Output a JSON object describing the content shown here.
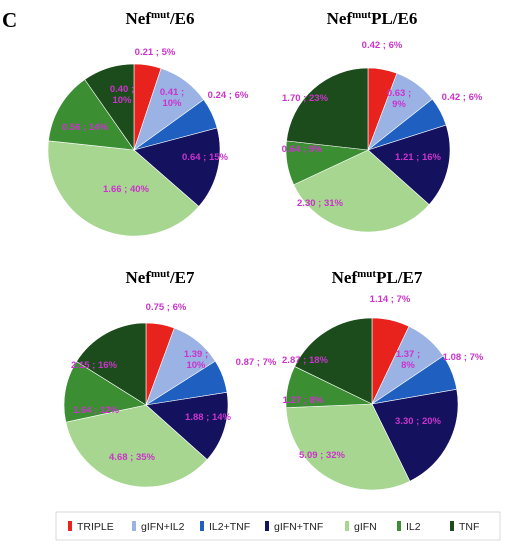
{
  "panel_label": "C",
  "colors": {
    "TRIPLE": "#e8221c",
    "gIFN+IL2": "#9ab2e4",
    "IL2+TNF": "#1f5fc0",
    "gIFN+TNF": "#14125e",
    "gIFN": "#a6d690",
    "IL2": "#3c8e33",
    "TNF": "#1c4c1c"
  },
  "legend": {
    "entries": [
      "TRIPLE",
      "gIFN+IL2",
      "IL2+TNF",
      "gIFN+TNF",
      "gIFN",
      "IL2",
      "TNF"
    ],
    "placement": "bottom"
  },
  "chart_data": [
    {
      "type": "pie",
      "title": {
        "base": "Nef",
        "sup": "mut",
        "rest": "/E6"
      },
      "categories": [
        "TRIPLE",
        "gIFN+IL2",
        "IL2+TNF",
        "gIFN+TNF",
        "gIFN",
        "IL2",
        "TNF"
      ],
      "values": [
        0.21,
        0.41,
        0.24,
        0.64,
        1.66,
        0.56,
        0.4
      ],
      "percents": [
        5,
        10,
        6,
        15,
        40,
        14,
        10
      ],
      "labels": [
        "0.21 ; 5%",
        "0.41 ;\n10%",
        "0.24 ; 6%",
        "0.64 ; 15%",
        "1.66 ; 40%",
        "0.56 ; 14%",
        "0.40 ;\n10%"
      ]
    },
    {
      "type": "pie",
      "title": {
        "base": "Nef",
        "sup": "mut",
        "rest": "PL/E6"
      },
      "categories": [
        "TRIPLE",
        "gIFN+IL2",
        "IL2+TNF",
        "gIFN+TNF",
        "gIFN",
        "IL2",
        "TNF"
      ],
      "values": [
        0.42,
        0.63,
        0.42,
        1.21,
        2.3,
        0.64,
        1.7
      ],
      "percents": [
        6,
        9,
        6,
        16,
        31,
        9,
        23
      ],
      "labels": [
        "0.42 ; 6%",
        "0.63 ;\n9%",
        "0.42 ; 6%",
        "1.21 ; 16%",
        "2.30 ; 31%",
        "0.64 ; 9%",
        "1.70 ; 23%"
      ]
    },
    {
      "type": "pie",
      "title": {
        "base": "Nef",
        "sup": "mut",
        "rest": "/E7"
      },
      "categories": [
        "TRIPLE",
        "gIFN+IL2",
        "IL2+TNF",
        "gIFN+TNF",
        "gIFN",
        "IL2",
        "TNF"
      ],
      "values": [
        0.75,
        1.39,
        0.87,
        1.88,
        4.68,
        1.64,
        2.15
      ],
      "percents": [
        6,
        10,
        7,
        14,
        35,
        12,
        16
      ],
      "labels": [
        "0.75 ; 6%",
        "1.39 ;\n10%",
        "0.87 ; 7%",
        "1.88 ; 14%",
        "4.68 ; 35%",
        "1.64 ; 12%",
        "2.15 ; 16%"
      ]
    },
    {
      "type": "pie",
      "title": {
        "base": "Nef",
        "sup": "mut",
        "rest": "PL/E7"
      },
      "categories": [
        "TRIPLE",
        "gIFN+IL2",
        "IL2+TNF",
        "gIFN+TNF",
        "gIFN",
        "IL2",
        "TNF"
      ],
      "values": [
        1.14,
        1.37,
        1.08,
        3.3,
        5.09,
        1.27,
        2.87
      ],
      "percents": [
        7,
        8,
        7,
        20,
        32,
        8,
        18
      ],
      "labels": [
        "1.14 ; 7%",
        "1.37 ;\n8%",
        "1.08 ; 7%",
        "3.30 ; 20%",
        "5.09 ; 32%",
        "1.27 ; 8%",
        "2.87 ; 18%"
      ]
    }
  ]
}
